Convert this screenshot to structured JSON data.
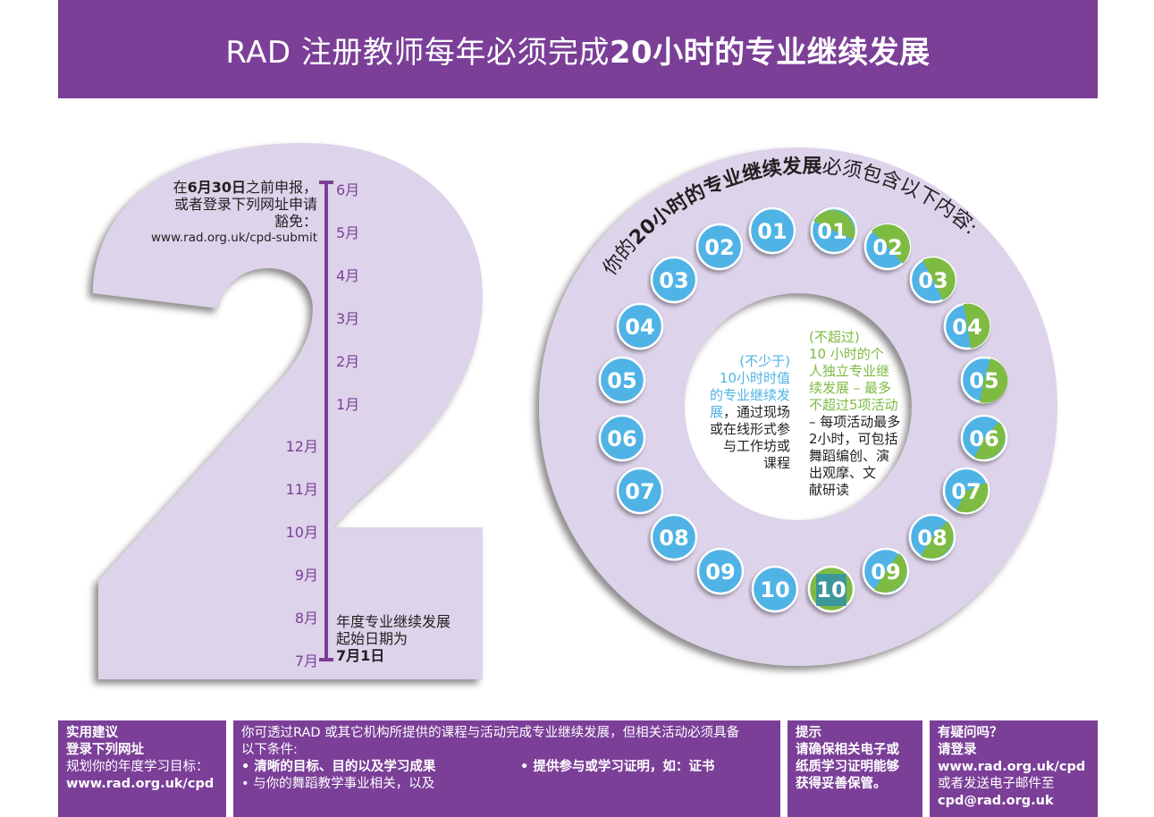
{
  "header": {
    "title_a": "RAD  注册教师每年必须完成",
    "title_b": "20小时的专业继续发展"
  },
  "deadline": {
    "line1_a": "在",
    "line1_b": "6月30日",
    "line1_c": "之前申报，",
    "line2": "或者登录下列网址申请",
    "line3": "豁免：",
    "url": "www.rad.org.uk/cpd-submit"
  },
  "start": {
    "line1": "年度专业继续发展",
    "line2": "起始日期为",
    "line3": "7月1日"
  },
  "months_right": [
    "6月",
    "5月",
    "4月",
    "3月",
    "2月",
    "1月"
  ],
  "months_left": [
    "12月",
    "11月",
    "10月",
    "9月",
    "8月",
    "7月"
  ],
  "ring": {
    "arc_a": "你的",
    "arc_b": "20小时的专业继续发展",
    "arc_c": "必须包含以下内容:",
    "blue_numbers": [
      "01",
      "02",
      "03",
      "04",
      "05",
      "06",
      "07",
      "08",
      "09",
      "10"
    ],
    "green_numbers": [
      "01",
      "02",
      "03",
      "04",
      "05",
      "06",
      "07",
      "08",
      "09",
      "10"
    ]
  },
  "inner_left": {
    "blue_l1": "(不少于)",
    "blue_l2": "10小时时值",
    "blue_l3": "的专业继续发",
    "blue_l4": "展",
    "dark_l4": "，通过现场",
    "dark_l5": "或在线形式参",
    "dark_l6": "与工作坊或",
    "dark_l7": "课程"
  },
  "inner_right": {
    "green_l1": "(不超过)",
    "green_l2": "10 小时的个",
    "green_l3": "人独立专业继",
    "green_l4": "续发展 – 最多",
    "green_l5": "不超过5项活动",
    "dark_l6": "– 每项活动最多",
    "dark_l7": "2小时，可包括",
    "dark_l8": "舞蹈编创、演",
    "dark_l9": "出观摩、文",
    "dark_l10": "献研读"
  },
  "footer": {
    "advice": {
      "title": "实用建议",
      "line2": "登录下列网址",
      "line3": "规划你的年度学习目标：",
      "url": "www.rad.org.uk/cpd"
    },
    "conditions": {
      "line1": "你可透过RAD 或其它机构所提供的课程与活动完成专业继续发展，但相关活动必须具备",
      "line2": "以下条件:",
      "bullet1": "• 清晰的目标、目的以及学习成果",
      "bullet2": "• 与你的舞蹈教学事业相关，以及",
      "bullet3": "• 提供参与或学习证明，如：证书"
    },
    "tip": {
      "title": "提示",
      "line2": "请确保相关电子或",
      "line3": "纸质学习证明能够",
      "line4": "获得妥善保管。"
    },
    "questions": {
      "title": "有疑问吗？",
      "line2": "请登录",
      "url": "www.rad.org.uk/cpd",
      "line4": "或者发送电子邮件至",
      "email": "cpd@rad.org.uk"
    }
  },
  "colors": {
    "purple": "#7b3f98",
    "lavender": "#ddd3ea",
    "blue": "#4fb3e6",
    "green": "#7dbb42"
  }
}
